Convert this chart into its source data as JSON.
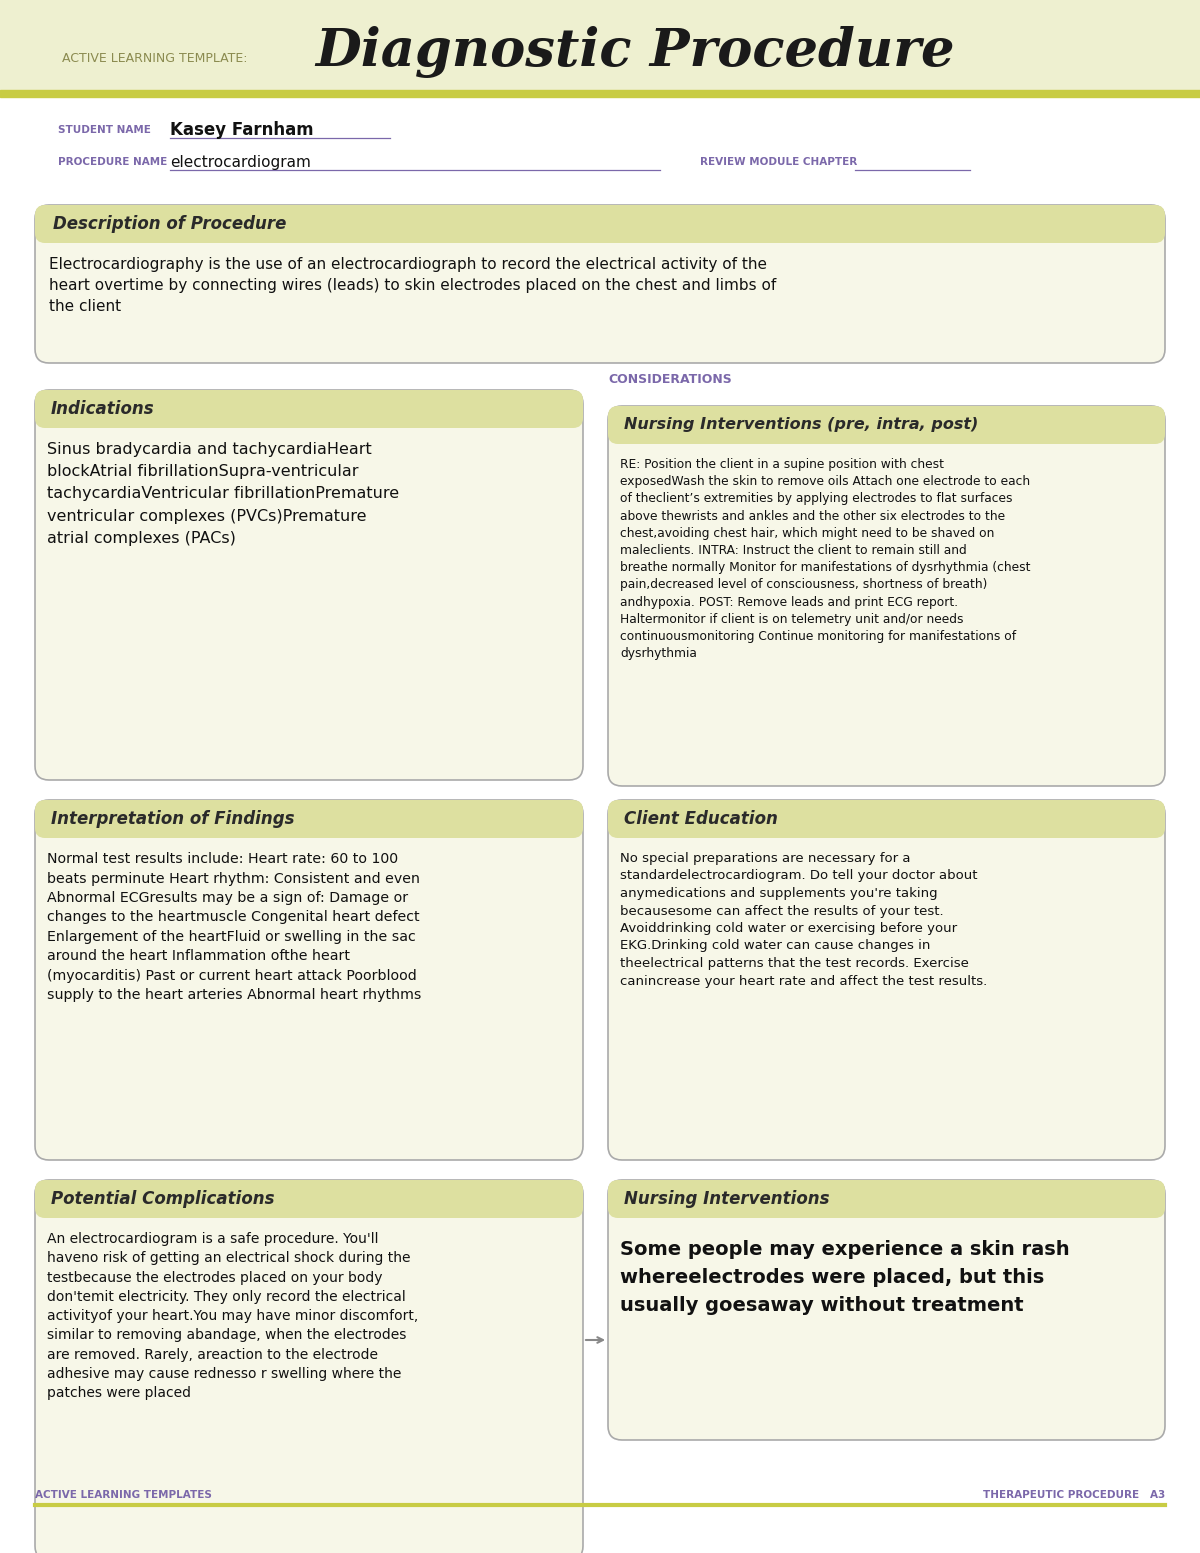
{
  "page_bg": "#ffffff",
  "header_bg": "#eef0d0",
  "header_line_color": "#c8cc44",
  "header_label": "ACTIVE LEARNING TEMPLATE:",
  "header_title": "Diagnostic Procedure",
  "header_label_color": "#8b8b50",
  "header_title_color": "#1a1a1a",
  "student_label": "STUDENT NAME",
  "student_name": "Kasey Farnham",
  "procedure_label": "PROCEDURE NAME",
  "procedure_name": "electrocardiogram",
  "review_label": "REVIEW MODULE CHAPTER",
  "label_color": "#7b68aa",
  "box_border_color": "#aaaaaa",
  "box_bg_light": "#f7f7e8",
  "box_bg_header": "#dde0a0",
  "considerations_label": "CONSIDERATIONS",
  "considerations_color": "#7b68aa",
  "desc_title": "Description of Procedure",
  "desc_text": "Electrocardiography is the use of an electrocardiograph to record the electrical activity of the\nheart overtime by connecting wires (leads) to skin electrodes placed on the chest and limbs of\nthe client",
  "indications_title": "Indications",
  "indications_text": "Sinus bradycardia and tachycardiaHeart\nblockAtrial fibrillationSupra-ventricular\ntachycardiaVentricular fibrillationPremature\nventricular complexes (PVCs)Premature\natrial complexes (PACs)",
  "nursing_pre_title": "Nursing Interventions (pre, intra, post)",
  "nursing_pre_text": "RE: Position the client in a supine position with chest\nexposedWash the skin to remove oils Attach one electrode to each\nof theclient’s extremities by applying electrodes to flat surfaces\nabove thewrists and ankles and the other six electrodes to the\nchest,avoiding chest hair, which might need to be shaved on\nmaleclients. INTRA: Instruct the client to remain still and\nbreathe normally Monitor for manifestations of dysrhythmia (chest\npain,decreased level of consciousness, shortness of breath)\nandhypoxia. POST: Remove leads and print ECG report.\nHaltermonitor if client is on telemetry unit and/or needs\ncontinuousmonitoring Continue monitoring for manifestations of\ndysrhythmia",
  "interp_title": "Interpretation of Findings",
  "interp_text": "Normal test results include: Heart rate: 60 to 100\nbeats perminute Heart rhythm: Consistent and even\nAbnormal ECGresults may be a sign of: Damage or\nchanges to the heartmuscle Congenital heart defect\nEnlargement of the heartFluid or swelling in the sac\naround the heart Inflammation ofthe heart\n(myocarditis) Past or current heart attack Poorblood\nsupply to the heart arteries Abnormal heart rhythms",
  "client_ed_title": "Client Education",
  "client_ed_text": "No special preparations are necessary for a\nstandardelectrocardiogram. Do tell your doctor about\nanymedications and supplements you're taking\nbecausesome can affect the results of your test.\nAvoiddrinking cold water or exercising before your\nEKG.Drinking cold water can cause changes in\ntheelectrical patterns that the test records. Exercise\ncanincrease your heart rate and affect the test results.",
  "potential_comp_title": "Potential Complications",
  "potential_comp_text": "An electrocardiogram is a safe procedure. You'll\nhaveno risk of getting an electrical shock during the\ntestbecause the electrodes placed on your body\ndon'temit electricity. They only record the electrical\nactivityof your heart.You may have minor discomfort,\nsimilar to removing abandage, when the electrodes\nare removed. Rarely, areaction to the electrode\nadhesive may cause rednesso r swelling where the\npatches were placed",
  "nursing_int_title": "Nursing Interventions",
  "nursing_int_text": "Some people may experience a skin rash\nwhereelectrodes were placed, but this\nusually goesaway without treatment",
  "footer_left": "ACTIVE LEARNING TEMPLATES",
  "footer_right": "THERAPEUTIC PROCEDURE   A3",
  "footer_color": "#7b68aa"
}
